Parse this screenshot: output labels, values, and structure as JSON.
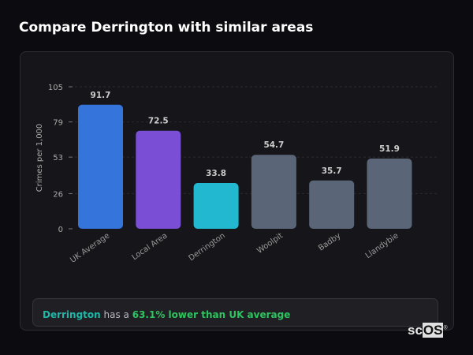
{
  "title": "Compare Derrington with similar areas",
  "chart_data": {
    "type": "bar",
    "title": "",
    "xlabel": "",
    "ylabel": "Crimes per 1,000",
    "ylim": [
      0,
      105
    ],
    "yticks": [
      0,
      26,
      53,
      79,
      105
    ],
    "grid": true,
    "categories": [
      "UK Average",
      "Local Area",
      "Derrington",
      "Woolpit",
      "Badby",
      "Llandybie"
    ],
    "values": [
      91.7,
      72.5,
      33.8,
      54.7,
      35.7,
      51.9
    ],
    "value_labels": [
      "91.7",
      "72.5",
      "33.8",
      "54.7",
      "35.7",
      "51.9"
    ],
    "colors": [
      "#3474db",
      "#7a4fd6",
      "#22b8d0",
      "#5a6578",
      "#5a6578",
      "#5a6578"
    ]
  },
  "summary": {
    "area": "Derrington",
    "middle": " has a ",
    "comparison": "63.1% lower than UK average",
    "area_color": "#1fb8a8",
    "comparison_color": "#2ec460"
  },
  "logo": {
    "text_a": "sc",
    "text_b": "OS",
    "mark": "®"
  }
}
